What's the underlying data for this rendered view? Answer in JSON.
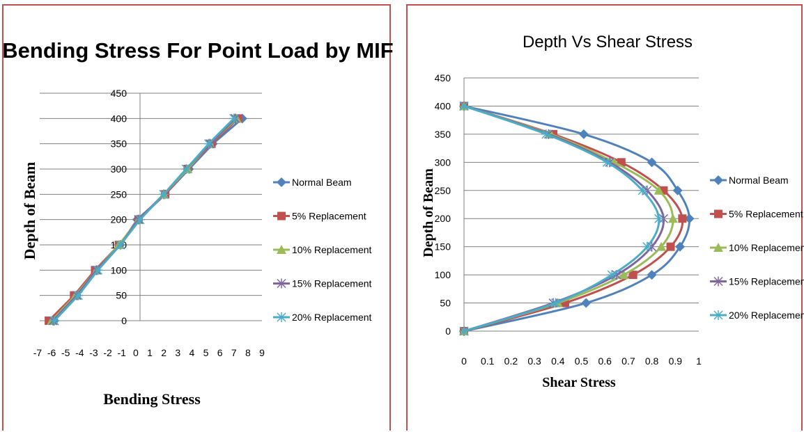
{
  "colors": {
    "border": "#c0504d",
    "series": [
      "#4f81bd",
      "#c0504d",
      "#9bbb59",
      "#8064a2",
      "#4bacc6"
    ]
  },
  "chart_data": [
    {
      "type": "line",
      "title": "Bending Stress For Point Load by MIF",
      "xlabel": "Bending Stress",
      "ylabel": "Depth of Beam",
      "xlim": [
        -7,
        9
      ],
      "ylim": [
        0,
        450
      ],
      "x_ticks": [
        "-7",
        "-6",
        "-5",
        "-4",
        "-3",
        "-2",
        "-1",
        "0",
        "1",
        "2",
        "3",
        "4",
        "5",
        "6",
        "7",
        "8",
        "9"
      ],
      "y_ticks": [
        "0",
        "50",
        "100",
        "150",
        "200",
        "250",
        "300",
        "350",
        "400",
        "450"
      ],
      "grid": "horizontal",
      "legend_position": "right",
      "series": [
        {
          "name": "Normal Beam",
          "marker": "diamond",
          "points": [
            [
              -5.8,
              0
            ],
            [
              -4.2,
              50
            ],
            [
              -2.8,
              100
            ],
            [
              -1.1,
              150
            ],
            [
              0.1,
              200
            ],
            [
              2.1,
              250
            ],
            [
              3.8,
              300
            ],
            [
              5.5,
              350
            ],
            [
              7.6,
              400
            ]
          ]
        },
        {
          "name": "5% Replacement",
          "marker": "square",
          "points": [
            [
              -6.2,
              0
            ],
            [
              -4.4,
              50
            ],
            [
              -2.9,
              100
            ],
            [
              -1.2,
              150
            ],
            [
              0.2,
              200
            ],
            [
              2.1,
              250
            ],
            [
              3.7,
              300
            ],
            [
              5.4,
              350
            ],
            [
              7.3,
              400
            ]
          ]
        },
        {
          "name": "10% Replacement",
          "marker": "triangle",
          "points": [
            [
              -6.0,
              0
            ],
            [
              -4.3,
              50
            ],
            [
              -2.8,
              100
            ],
            [
              -1.2,
              150
            ],
            [
              0.2,
              200
            ],
            [
              2.0,
              250
            ],
            [
              3.7,
              300
            ],
            [
              5.3,
              350
            ],
            [
              7.2,
              400
            ]
          ]
        },
        {
          "name": "15% Replacement",
          "marker": "x",
          "points": [
            [
              -5.9,
              0
            ],
            [
              -4.2,
              50
            ],
            [
              -2.8,
              100
            ],
            [
              -1.1,
              150
            ],
            [
              0.2,
              200
            ],
            [
              2.0,
              250
            ],
            [
              3.6,
              300
            ],
            [
              5.3,
              350
            ],
            [
              7.1,
              400
            ]
          ]
        },
        {
          "name": "20% Replacement",
          "marker": "star",
          "points": [
            [
              -5.8,
              0
            ],
            [
              -4.1,
              50
            ],
            [
              -2.7,
              100
            ],
            [
              -1.1,
              150
            ],
            [
              0.3,
              200
            ],
            [
              2.0,
              250
            ],
            [
              3.6,
              300
            ],
            [
              5.2,
              350
            ],
            [
              7.0,
              400
            ]
          ]
        }
      ]
    },
    {
      "type": "line",
      "title": "Depth Vs Shear Stress",
      "xlabel": "Shear Stress",
      "ylabel": "Depth of Beam",
      "xlim": [
        0,
        1
      ],
      "ylim": [
        0,
        450
      ],
      "x_ticks": [
        "0",
        "0.1",
        "0.2",
        "0.3",
        "0.4",
        "0.5",
        "0.6",
        "0.7",
        "0.8",
        "0.9",
        "1"
      ],
      "y_ticks": [
        "0",
        "50",
        "100",
        "150",
        "200",
        "250",
        "300",
        "350",
        "400",
        "450"
      ],
      "grid": "horizontal",
      "legend_position": "right",
      "series": [
        {
          "name": "Normal Beam",
          "marker": "diamond",
          "points": [
            [
              0,
              0
            ],
            [
              0.52,
              50
            ],
            [
              0.8,
              100
            ],
            [
              0.92,
              150
            ],
            [
              0.96,
              200
            ],
            [
              0.91,
              250
            ],
            [
              0.8,
              300
            ],
            [
              0.51,
              350
            ],
            [
              0,
              400
            ]
          ]
        },
        {
          "name": "5% Replacement",
          "marker": "square",
          "points": [
            [
              0,
              0
            ],
            [
              0.43,
              50
            ],
            [
              0.72,
              100
            ],
            [
              0.88,
              150
            ],
            [
              0.93,
              200
            ],
            [
              0.85,
              250
            ],
            [
              0.67,
              300
            ],
            [
              0.38,
              350
            ],
            [
              0,
              400
            ]
          ]
        },
        {
          "name": "10% Replacement",
          "marker": "triangle",
          "points": [
            [
              0,
              0
            ],
            [
              0.4,
              50
            ],
            [
              0.68,
              100
            ],
            [
              0.84,
              150
            ],
            [
              0.89,
              200
            ],
            [
              0.83,
              250
            ],
            [
              0.64,
              300
            ],
            [
              0.37,
              350
            ],
            [
              0,
              400
            ]
          ]
        },
        {
          "name": "15% Replacement",
          "marker": "x",
          "points": [
            [
              0,
              0
            ],
            [
              0.38,
              50
            ],
            [
              0.65,
              100
            ],
            [
              0.8,
              150
            ],
            [
              0.85,
              200
            ],
            [
              0.78,
              250
            ],
            [
              0.62,
              300
            ],
            [
              0.36,
              350
            ],
            [
              0,
              400
            ]
          ]
        },
        {
          "name": "20% Replacement",
          "marker": "star",
          "points": [
            [
              0,
              0
            ],
            [
              0.39,
              50
            ],
            [
              0.63,
              100
            ],
            [
              0.78,
              150
            ],
            [
              0.83,
              200
            ],
            [
              0.76,
              250
            ],
            [
              0.61,
              300
            ],
            [
              0.35,
              350
            ],
            [
              0,
              400
            ]
          ]
        }
      ]
    }
  ]
}
